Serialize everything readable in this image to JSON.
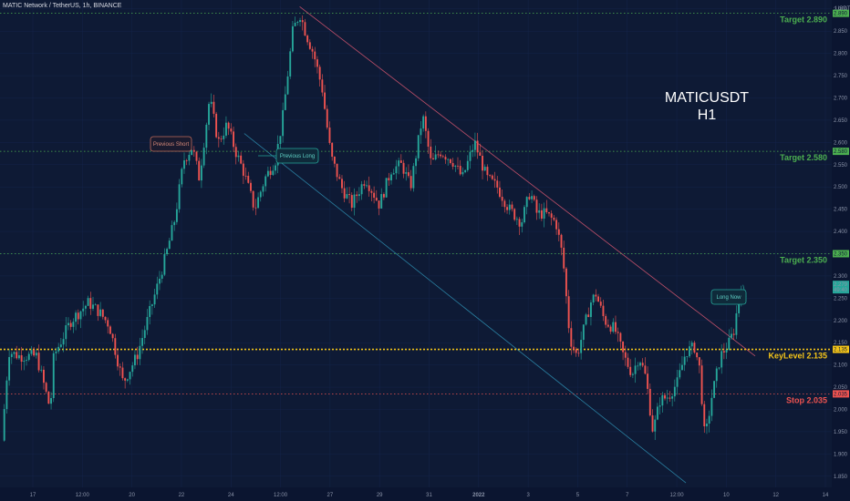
{
  "header": {
    "title": "MATIC Network / TetherUS, 1h, BINANCE"
  },
  "chart_data": {
    "type": "candlestick",
    "symbol_label": "MATICUSDT",
    "interval_label": "H1",
    "unit_label": "USDT",
    "ylim": [
      1.825,
      2.92
    ],
    "y_ticks": [
      "2.900",
      "2.850",
      "2.800",
      "2.750",
      "2.700",
      "2.650",
      "2.600",
      "2.550",
      "2.500",
      "2.450",
      "2.400",
      "2.350",
      "2.300",
      "2.250",
      "2.200",
      "2.150",
      "2.100",
      "2.050",
      "2.000",
      "1.950",
      "1.900",
      "1.850"
    ],
    "x_ticks": [
      "17",
      "12:00",
      "20",
      "22",
      "24",
      "12:00",
      "27",
      "29",
      "31",
      "2022",
      "3",
      "5",
      "7",
      "12:00",
      "10",
      "12",
      "14"
    ],
    "levels": [
      {
        "name": "Target 2.890",
        "value": 2.89,
        "tag": "2.890",
        "color": "#4caf50"
      },
      {
        "name": "Target 2.580",
        "value": 2.58,
        "tag": "2.580",
        "color": "#4caf50"
      },
      {
        "name": "Target 2.350",
        "value": 2.35,
        "tag": "2.350",
        "color": "#4caf50"
      },
      {
        "name": "KeyLevel 2.135",
        "value": 2.135,
        "tag": "2.135",
        "color": "#f5c518"
      },
      {
        "name": "Stop 2.035",
        "value": 2.035,
        "tag": "2.035",
        "color": "#ef5350"
      }
    ],
    "price_tag": {
      "value": "2.279",
      "countdown": "49:40",
      "color": "#26a69a"
    },
    "annotations": [
      "Previous Short",
      "Previous Long",
      "Long Now"
    ],
    "price_path": [
      [
        0,
        1.93
      ],
      [
        0.4,
        2.13
      ],
      [
        1,
        2.12
      ],
      [
        2,
        2.12
      ],
      [
        2.8,
        2.0
      ],
      [
        3,
        2.12
      ],
      [
        4,
        2.2
      ],
      [
        5,
        2.24
      ],
      [
        5.6,
        2.22
      ],
      [
        6.2,
        2.19
      ],
      [
        7,
        2.06
      ],
      [
        7.8,
        2.12
      ],
      [
        8.4,
        2.2
      ],
      [
        9,
        2.28
      ],
      [
        9.5,
        2.35
      ],
      [
        10,
        2.43
      ],
      [
        10.5,
        2.56
      ],
      [
        11,
        2.59
      ],
      [
        11.4,
        2.52
      ],
      [
        12,
        2.7
      ],
      [
        12.5,
        2.6
      ],
      [
        13,
        2.64
      ],
      [
        13.5,
        2.58
      ],
      [
        14,
        2.53
      ],
      [
        14.6,
        2.45
      ],
      [
        15.2,
        2.52
      ],
      [
        15.8,
        2.56
      ],
      [
        16.2,
        2.65
      ],
      [
        16.8,
        2.85
      ],
      [
        17.2,
        2.89
      ],
      [
        17.6,
        2.84
      ],
      [
        18,
        2.8
      ],
      [
        18.5,
        2.72
      ],
      [
        19,
        2.57
      ],
      [
        19.6,
        2.5
      ],
      [
        20.2,
        2.46
      ],
      [
        21,
        2.52
      ],
      [
        21.8,
        2.46
      ],
      [
        22.5,
        2.54
      ],
      [
        23.1,
        2.55
      ],
      [
        23.6,
        2.5
      ],
      [
        24.3,
        2.66
      ],
      [
        24.8,
        2.55
      ],
      [
        25.3,
        2.58
      ],
      [
        26,
        2.56
      ],
      [
        26.6,
        2.52
      ],
      [
        27.3,
        2.6
      ],
      [
        28,
        2.52
      ],
      [
        28.6,
        2.5
      ],
      [
        29.3,
        2.45
      ],
      [
        30,
        2.42
      ],
      [
        30.5,
        2.49
      ],
      [
        30.9,
        2.44
      ],
      [
        31.4,
        2.44
      ],
      [
        32,
        2.42
      ],
      [
        32.4,
        2.34
      ],
      [
        32.8,
        2.16
      ],
      [
        33.2,
        2.12
      ],
      [
        33.6,
        2.18
      ],
      [
        34,
        2.24
      ],
      [
        34.3,
        2.26
      ],
      [
        34.8,
        2.2
      ],
      [
        35.4,
        2.18
      ],
      [
        35.9,
        2.12
      ],
      [
        36.4,
        2.08
      ],
      [
        36.8,
        2.12
      ],
      [
        37.2,
        2.07
      ],
      [
        37.6,
        1.95
      ],
      [
        38,
        2.02
      ],
      [
        38.5,
        2.03
      ],
      [
        39,
        2.06
      ],
      [
        39.5,
        2.13
      ],
      [
        40,
        2.14
      ],
      [
        40.3,
        2.09
      ],
      [
        40.6,
        1.93
      ],
      [
        41,
        2.03
      ],
      [
        41.5,
        2.12
      ],
      [
        42,
        2.15
      ],
      [
        42.3,
        2.18
      ],
      [
        42.5,
        2.24
      ],
      [
        42.7,
        2.28
      ]
    ]
  }
}
